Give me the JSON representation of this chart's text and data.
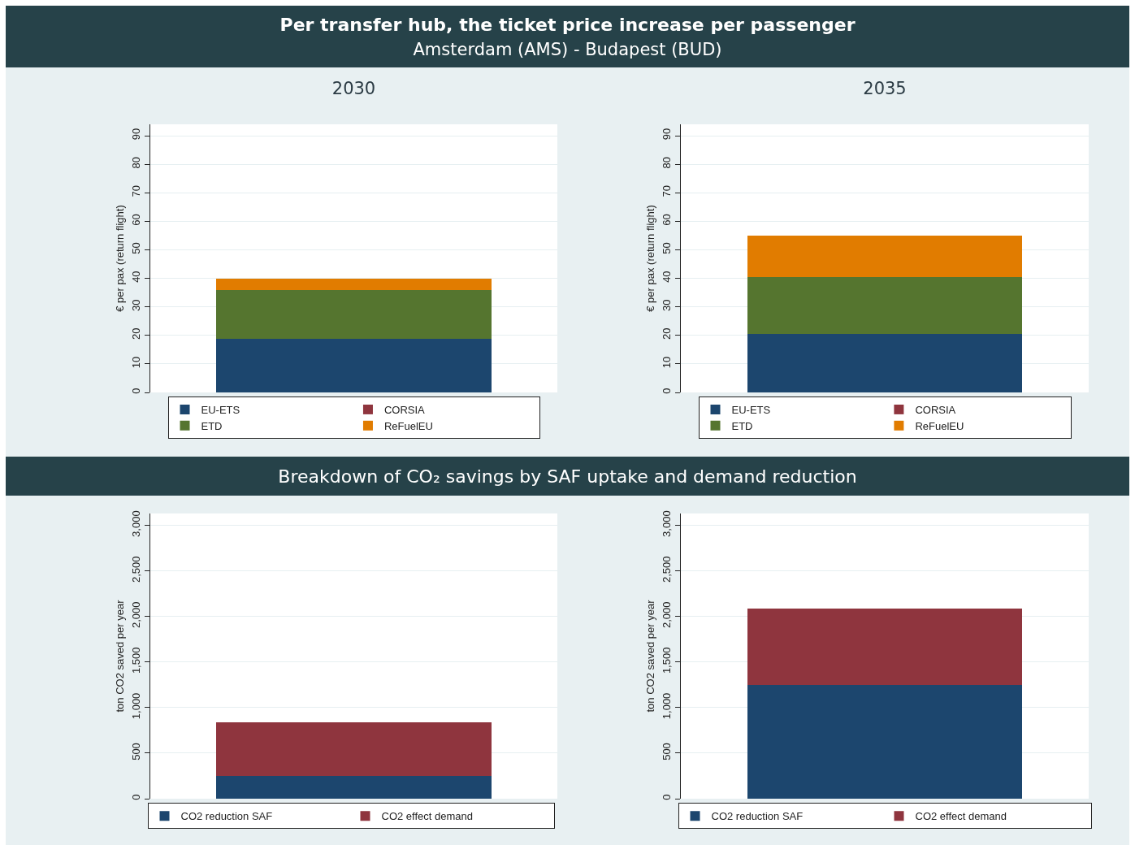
{
  "chart_data": [
    {
      "type": "other",
      "title": "Per transfer hub, the ticket price increase per passenger",
      "subtitle": "Amsterdam (AMS) - Budapest (BUD)"
    },
    {
      "type": "bar",
      "title": "2030",
      "ylabel": "€ per pax (return flight)",
      "categories": [
        null
      ],
      "stacked": true,
      "ylim": [
        0,
        94
      ],
      "yticks": [
        0,
        10,
        20,
        30,
        40,
        50,
        60,
        70,
        80,
        90
      ],
      "grid": "y",
      "legend": "bottom",
      "tick_labels": "y",
      "series": [
        {
          "name": "EU-ETS",
          "color": "#1c466e",
          "values": [
            18.7
          ]
        },
        {
          "name": "CORSIA",
          "color": "#8f353e",
          "values": [
            0
          ]
        },
        {
          "name": "ETD",
          "color": "#55752f",
          "values": [
            17.1
          ]
        },
        {
          "name": "ReFuelEU",
          "color": "#e17c00",
          "values": [
            4.2
          ]
        }
      ]
    },
    {
      "type": "bar",
      "title": "2035",
      "ylabel": "€ per pax (return flight)",
      "categories": [
        null
      ],
      "stacked": true,
      "ylim": [
        0,
        94
      ],
      "yticks": [
        0,
        10,
        20,
        30,
        40,
        50,
        60,
        70,
        80,
        90
      ],
      "grid": "y",
      "legend": "bottom",
      "tick_labels": "y",
      "series": [
        {
          "name": "EU-ETS",
          "color": "#1c466e",
          "values": [
            20.5
          ]
        },
        {
          "name": "CORSIA",
          "color": "#8f353e",
          "values": [
            0
          ]
        },
        {
          "name": "ETD",
          "color": "#55752f",
          "values": [
            20
          ]
        },
        {
          "name": "ReFuelEU",
          "color": "#e17c00",
          "values": [
            14.4
          ]
        }
      ]
    },
    {
      "type": "other",
      "title": "Breakdown of CO₂ savings by SAF uptake and demand reduction"
    },
    {
      "type": "bar",
      "ylabel": "ton CO2 saved per year",
      "categories": [
        null
      ],
      "stacked": true,
      "ylim": [
        0,
        3130
      ],
      "yticks": [
        0,
        500,
        {
          "value": 1000,
          "label": "1,000"
        },
        {
          "value": 1500,
          "label": "1,500"
        },
        {
          "value": 2000,
          "label": "2,000"
        },
        {
          "value": 2500,
          "label": "2,500"
        },
        {
          "value": 3000,
          "label": "3,000"
        }
      ],
      "grid": "y",
      "legend": "bottom",
      "tick_labels": "y",
      "series": [
        {
          "name": "CO2 reduction SAF",
          "color": "#1c466e",
          "values": [
            250
          ]
        },
        {
          "name": "CO2 effect demand",
          "color": "#8f353e",
          "values": [
            590
          ]
        }
      ]
    },
    {
      "type": "bar",
      "ylabel": "ton CO2 saved per year",
      "categories": [
        null
      ],
      "stacked": true,
      "ylim": [
        0,
        3130
      ],
      "yticks": [
        0,
        500,
        {
          "value": 1000,
          "label": "1,000"
        },
        {
          "value": 1500,
          "label": "1,500"
        },
        {
          "value": 2000,
          "label": "2,000"
        },
        {
          "value": 2500,
          "label": "2,500"
        },
        {
          "value": 3000,
          "label": "3,000"
        }
      ],
      "grid": "y",
      "legend": "bottom",
      "tick_labels": "y",
      "series": [
        {
          "name": "CO2 reduction SAF",
          "color": "#1c466e",
          "values": [
            1250
          ]
        },
        {
          "name": "CO2 effect demand",
          "color": "#8f353e",
          "values": [
            840
          ]
        }
      ]
    }
  ]
}
